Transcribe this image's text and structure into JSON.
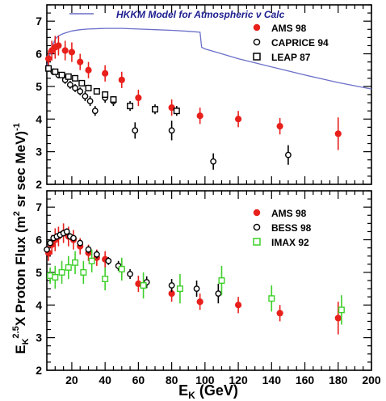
{
  "y_axis_label_main": "E",
  "y_axis_label_sub": "K",
  "y_axis_label_sup": "2.5",
  "y_axis_label_rest": "X Proton Flux (m",
  "y_axis_label_sup2": "2",
  "y_axis_label_rest2": " sr sec MeV",
  "y_axis_label_close": ")",
  "y_axis_label_sup3": "-1",
  "x_axis_label_main": "E",
  "x_axis_label_sub": "K",
  "x_axis_label_rest": " (GeV)",
  "colors": {
    "ams": "#e8201c",
    "imax": "#3ed02a",
    "hkkm": "#6b6fc8",
    "black": "#000000"
  },
  "chart_data": [
    {
      "type": "scatter",
      "panel": "top",
      "xlim": [
        5,
        200
      ],
      "ylim": [
        2,
        7.5
      ],
      "yticks": [
        "2",
        "3",
        "4",
        "5",
        "6",
        "7"
      ],
      "annotation": "HKKM Model for Atmospheric ν Calc",
      "model_curve": {
        "name": "HKKM Model for Atmospheric ν Calc",
        "x": [
          5,
          8,
          10,
          12,
          15,
          20,
          25,
          30,
          40,
          50,
          60,
          70,
          80,
          90,
          97,
          98,
          100,
          110,
          120,
          140,
          160,
          180,
          200
        ],
        "y": [
          5.6,
          6.2,
          6.45,
          6.55,
          6.62,
          6.7,
          6.74,
          6.76,
          6.78,
          6.78,
          6.76,
          6.74,
          6.72,
          6.69,
          6.66,
          6.2,
          6.15,
          6.0,
          5.85,
          5.6,
          5.35,
          5.12,
          4.92
        ]
      },
      "series": [
        {
          "name": "AMS 98",
          "marker": "filled-circle",
          "color": "#e8201c",
          "x": [
            6,
            8,
            10,
            12,
            16,
            20,
            25,
            30,
            40,
            50,
            60,
            80,
            97,
            120,
            145,
            180
          ],
          "y": [
            5.85,
            6.1,
            6.2,
            6.25,
            6.1,
            6.05,
            5.75,
            5.5,
            5.4,
            5.2,
            4.65,
            4.35,
            4.1,
            4.0,
            3.78,
            3.55
          ],
          "err": [
            0.25,
            0.3,
            0.35,
            0.3,
            0.3,
            0.3,
            0.25,
            0.25,
            0.25,
            0.25,
            0.25,
            0.25,
            0.25,
            0.25,
            0.25,
            0.5
          ]
        },
        {
          "name": "CAPRICE 94",
          "marker": "open-circle",
          "color": "#000000",
          "x": [
            6,
            9,
            12,
            16,
            19,
            22,
            25,
            28,
            31,
            34,
            40,
            45,
            58,
            80,
            105,
            150
          ],
          "y": [
            5.55,
            5.45,
            5.35,
            5.2,
            5.05,
            4.95,
            4.85,
            4.7,
            4.55,
            4.25,
            4.65,
            4.55,
            3.65,
            3.65,
            2.7,
            2.9
          ],
          "err": [
            0.1,
            0.1,
            0.1,
            0.12,
            0.12,
            0.12,
            0.12,
            0.15,
            0.15,
            0.15,
            0.15,
            0.15,
            0.25,
            0.3,
            0.25,
            0.3
          ]
        },
        {
          "name": "LEAP 87",
          "marker": "open-square",
          "color": "#000000",
          "x": [
            6,
            10,
            14,
            18,
            22,
            26,
            30,
            35,
            40,
            45,
            55,
            70,
            83
          ],
          "y": [
            5.55,
            5.45,
            5.35,
            5.3,
            5.25,
            5.1,
            4.95,
            4.85,
            4.75,
            4.6,
            4.4,
            4.3,
            4.25
          ],
          "err": [
            0.08,
            0.08,
            0.08,
            0.08,
            0.08,
            0.08,
            0.1,
            0.1,
            0.1,
            0.1,
            0.15,
            0.15,
            0.15
          ]
        }
      ]
    },
    {
      "type": "scatter",
      "panel": "bottom",
      "xlim": [
        5,
        200
      ],
      "ylim": [
        2,
        7.5
      ],
      "yticks": [
        "2",
        "3",
        "4",
        "5",
        "6",
        "7"
      ],
      "xticks": [
        "20",
        "40",
        "60",
        "80",
        "100",
        "120",
        "140",
        "160",
        "180",
        "200"
      ],
      "series": [
        {
          "name": "AMS 98",
          "marker": "filled-circle",
          "color": "#e8201c",
          "x": [
            6,
            8,
            10,
            12,
            15,
            18,
            21,
            25,
            30,
            35,
            40,
            50,
            60,
            80,
            97,
            120,
            145,
            180
          ],
          "y": [
            5.6,
            5.85,
            6.0,
            6.1,
            6.2,
            6.1,
            6.0,
            5.8,
            5.6,
            5.45,
            5.4,
            5.1,
            4.65,
            4.35,
            4.1,
            4.0,
            3.75,
            3.6
          ],
          "err": [
            0.25,
            0.3,
            0.35,
            0.3,
            0.3,
            0.3,
            0.3,
            0.25,
            0.25,
            0.25,
            0.25,
            0.25,
            0.25,
            0.25,
            0.25,
            0.25,
            0.25,
            0.5
          ]
        },
        {
          "name": "BESS 98",
          "marker": "open-circle",
          "color": "#000000",
          "x": [
            5,
            7,
            9,
            11,
            13,
            15,
            17,
            19,
            21,
            25,
            30,
            35,
            42,
            48,
            55,
            65,
            80,
            95,
            108
          ],
          "y": [
            5.7,
            5.9,
            6.05,
            6.1,
            6.15,
            6.2,
            6.25,
            6.1,
            6.05,
            5.9,
            5.7,
            5.55,
            5.35,
            5.2,
            4.95,
            4.7,
            4.6,
            4.5,
            4.35
          ],
          "err": [
            0.1,
            0.1,
            0.1,
            0.1,
            0.1,
            0.1,
            0.1,
            0.1,
            0.1,
            0.1,
            0.12,
            0.12,
            0.12,
            0.15,
            0.15,
            0.18,
            0.2,
            0.25,
            0.3
          ]
        },
        {
          "name": "IMAX 92",
          "marker": "open-square",
          "color": "#3ed02a",
          "x": [
            7,
            10,
            14,
            18,
            22,
            27,
            32,
            40,
            50,
            63,
            85,
            110,
            140,
            182
          ],
          "y": [
            4.9,
            4.85,
            5.0,
            5.15,
            5.3,
            5.0,
            5.35,
            4.8,
            5.1,
            4.6,
            4.5,
            4.75,
            4.2,
            3.85
          ],
          "err": [
            0.25,
            0.35,
            0.35,
            0.35,
            0.35,
            0.35,
            0.35,
            0.35,
            0.35,
            0.4,
            0.45,
            0.45,
            0.4,
            0.45
          ]
        }
      ]
    }
  ]
}
